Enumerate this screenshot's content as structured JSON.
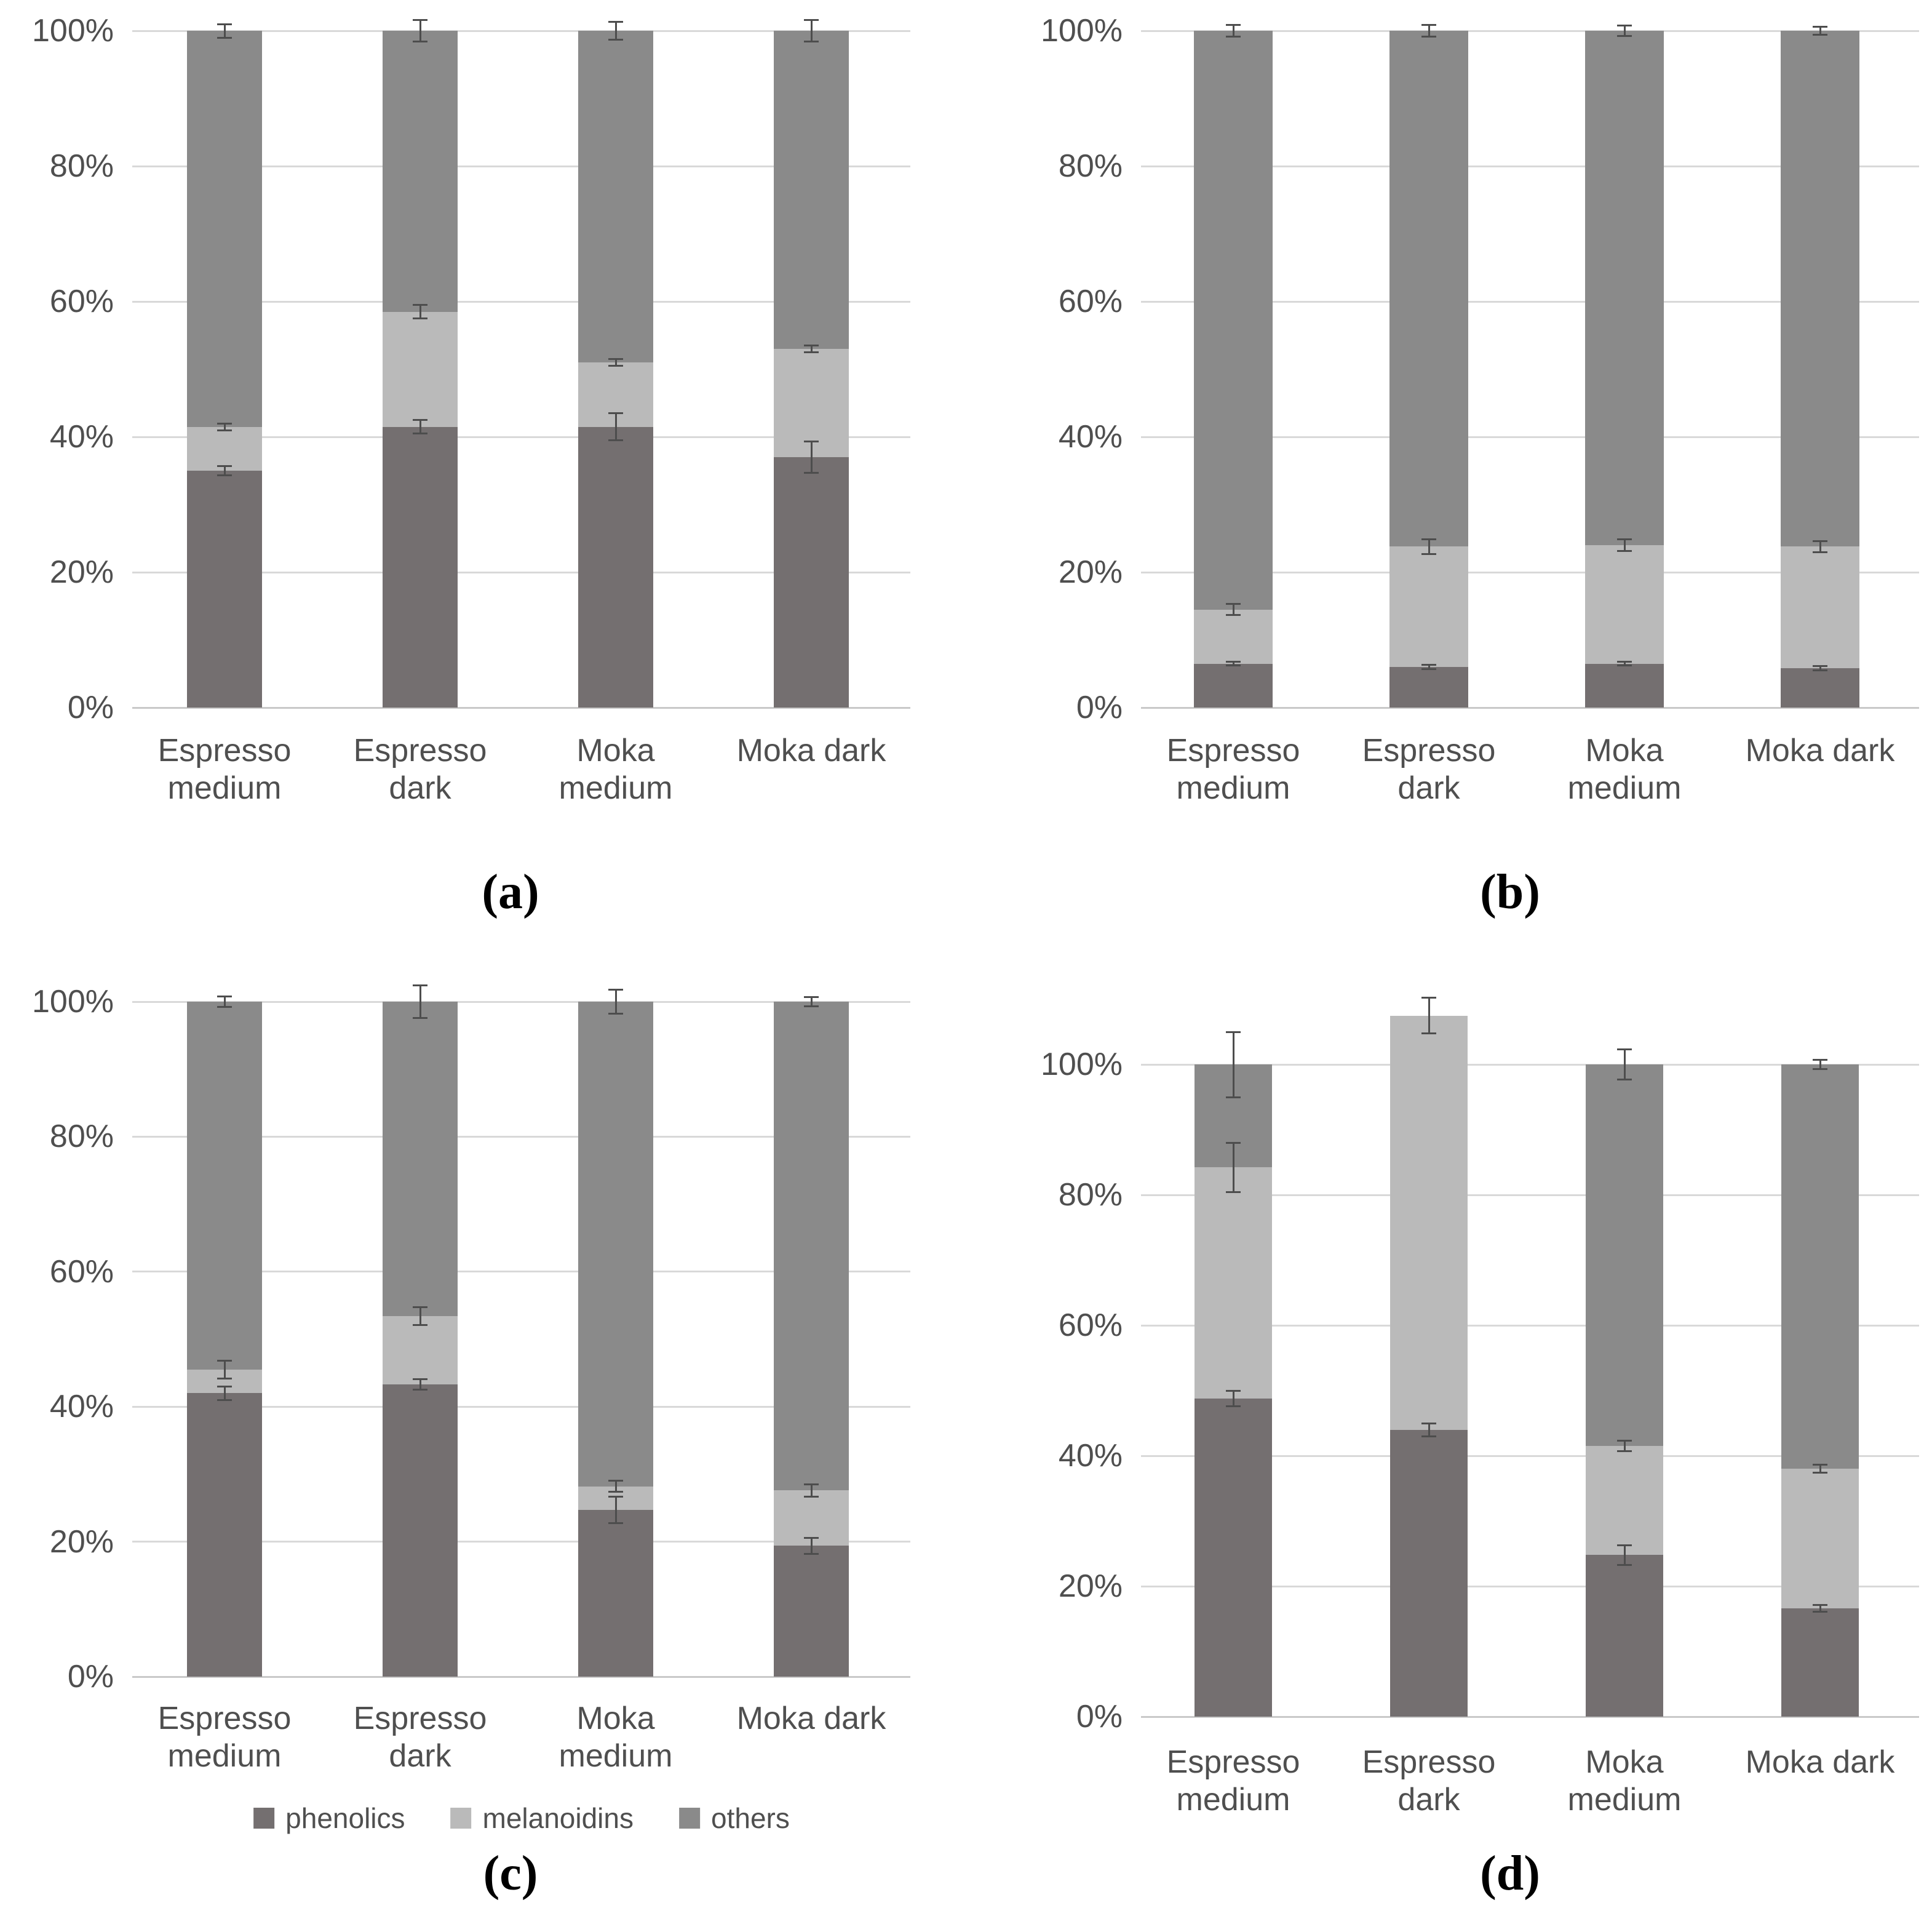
{
  "figure": {
    "kind": "four-panel stacked bar figure",
    "background": "#ffffff"
  },
  "palette": {
    "phenolics": "#746f70",
    "melanoidins": "#bababa",
    "others": "#8a8a8a",
    "gridline": "#d9d9d9",
    "error_bar": "#4d4d4d",
    "tick_text": "#4f4f4f"
  },
  "legend": {
    "items": [
      {
        "label": "phenolics",
        "color": "#746f70"
      },
      {
        "label": "melanoidins",
        "color": "#bababa"
      },
      {
        "label": "others",
        "color": "#8a8a8a"
      }
    ]
  },
  "chart_data": [
    {
      "id": "a",
      "caption": "(a)",
      "type": "bar",
      "stacked": true,
      "grid": true,
      "legend": false,
      "ylim": [
        0,
        100
      ],
      "ytick_labels": [
        "0%",
        "20%",
        "40%",
        "60%",
        "80%",
        "100%"
      ],
      "categories": [
        "Espresso medium",
        "Espresso dark",
        "Moka medium",
        "Moka dark"
      ],
      "series": [
        {
          "name": "phenolics",
          "color": "#746f70",
          "values": [
            35.0,
            41.5,
            41.5,
            37.0
          ]
        },
        {
          "name": "melanoidins",
          "color": "#bababa",
          "values": [
            6.5,
            17.0,
            9.5,
            16.0
          ]
        },
        {
          "name": "others",
          "color": "#8a8a8a",
          "values": [
            58.5,
            41.5,
            49.0,
            47.0
          ]
        }
      ],
      "error_bars": {
        "phenolics_top": [
          0.7,
          1.0,
          2.0,
          2.3
        ],
        "melanoidins_top": [
          0.5,
          1.0,
          0.5,
          0.5
        ],
        "total_top": [
          1.0,
          1.6,
          1.3,
          1.6
        ]
      }
    },
    {
      "id": "b",
      "caption": "(b)",
      "type": "bar",
      "stacked": true,
      "grid": true,
      "legend": false,
      "ylim": [
        0,
        100
      ],
      "ytick_labels": [
        "0%",
        "20%",
        "40%",
        "60%",
        "80%",
        "100%"
      ],
      "categories": [
        "Espresso medium",
        "Espresso dark",
        "Moka medium",
        "Moka dark"
      ],
      "series": [
        {
          "name": "phenolics",
          "color": "#746f70",
          "values": [
            6.5,
            6.0,
            6.5,
            5.8
          ]
        },
        {
          "name": "melanoidins",
          "color": "#bababa",
          "values": [
            8.0,
            17.8,
            17.5,
            18.0
          ]
        },
        {
          "name": "others",
          "color": "#8a8a8a",
          "values": [
            85.5,
            76.2,
            76.0,
            76.2
          ]
        }
      ],
      "error_bars": {
        "phenolics_top": [
          0.3,
          0.3,
          0.3,
          0.3
        ],
        "melanoidins_top": [
          0.8,
          1.1,
          0.9,
          0.8
        ],
        "total_top": [
          0.9,
          0.9,
          0.8,
          0.6
        ]
      }
    },
    {
      "id": "c",
      "caption": "(c)",
      "type": "bar",
      "stacked": true,
      "grid": true,
      "legend": true,
      "ylim": [
        0,
        100
      ],
      "ytick_labels": [
        "0%",
        "20%",
        "40%",
        "60%",
        "80%",
        "100%"
      ],
      "categories": [
        "Espresso medium",
        "Espresso dark",
        "Moka medium",
        "Moka dark"
      ],
      "series": [
        {
          "name": "phenolics",
          "color": "#746f70",
          "values": [
            42.0,
            43.3,
            24.7,
            19.4
          ]
        },
        {
          "name": "melanoidins",
          "color": "#bababa",
          "values": [
            3.5,
            10.1,
            3.5,
            8.2
          ]
        },
        {
          "name": "others",
          "color": "#8a8a8a",
          "values": [
            54.5,
            46.6,
            71.8,
            72.4
          ]
        }
      ],
      "error_bars": {
        "phenolics_top": [
          1.0,
          0.8,
          2.0,
          1.2
        ],
        "melanoidins_top": [
          1.3,
          1.3,
          0.8,
          0.9
        ],
        "total_top": [
          0.8,
          2.4,
          1.8,
          0.7
        ]
      }
    },
    {
      "id": "d",
      "caption": "(d)",
      "type": "bar",
      "stacked": true,
      "grid": true,
      "legend": false,
      "ylim": [
        0,
        100
      ],
      "ytick_labels": [
        "0%",
        "20%",
        "40%",
        "60%",
        "80%",
        "100%"
      ],
      "categories": [
        "Espresso medium",
        "Espresso dark",
        "Moka medium",
        "Moka dark"
      ],
      "series": [
        {
          "name": "phenolics",
          "color": "#746f70",
          "values": [
            48.8,
            44.0,
            24.8,
            16.6
          ]
        },
        {
          "name": "melanoidins",
          "color": "#bababa",
          "values": [
            35.4,
            63.5,
            16.7,
            21.4
          ]
        },
        {
          "name": "others",
          "color": "#8a8a8a",
          "values": [
            15.8,
            0.0,
            58.5,
            62.0
          ]
        }
      ],
      "error_bars": {
        "phenolics_top": [
          1.2,
          1.0,
          1.5,
          0.5
        ],
        "melanoidins_top": [
          3.8,
          null,
          0.8,
          0.6
        ],
        "total_top": [
          5.0,
          2.7,
          2.3,
          0.7
        ]
      }
    }
  ]
}
